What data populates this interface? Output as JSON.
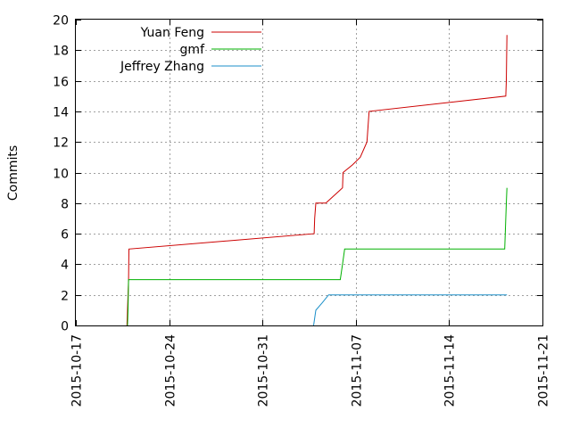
{
  "chart_data": {
    "type": "line",
    "title": "",
    "xlabel": "",
    "ylabel": "Commits",
    "x_axis_type": "date",
    "xlim": [
      "2015-10-17",
      "2015-11-21"
    ],
    "ylim": [
      0,
      20
    ],
    "x_ticks": [
      "2015-10-17",
      "2015-10-24",
      "2015-10-31",
      "2015-11-07",
      "2015-11-14",
      "2015-11-21"
    ],
    "y_ticks": [
      "0",
      "2",
      "4",
      "6",
      "8",
      "10",
      "12",
      "14",
      "16",
      "18",
      "20"
    ],
    "grid": true,
    "legend_position": "top-left",
    "series": [
      {
        "name": "Yuan Feng",
        "color": "#cc0000",
        "points": [
          [
            "2015-10-20 20:00",
            0
          ],
          [
            "2015-10-20 21:00",
            1
          ],
          [
            "2015-10-20 22:00",
            2
          ],
          [
            "2015-10-20 23:00",
            3
          ],
          [
            "2015-10-20 23:30",
            5
          ],
          [
            "2015-11-03 21:00",
            6
          ],
          [
            "2015-11-03 22:00",
            7
          ],
          [
            "2015-11-04 00:00",
            8
          ],
          [
            "2015-11-04 18:00",
            8
          ],
          [
            "2015-11-06 00:00",
            9
          ],
          [
            "2015-11-06 01:00",
            10
          ],
          [
            "2015-11-06 18:00",
            10.5
          ],
          [
            "2015-11-07 08:00",
            11
          ],
          [
            "2015-11-07 20:00",
            12
          ],
          [
            "2015-11-08 00:00",
            14
          ],
          [
            "2015-11-18 06:00",
            15
          ],
          [
            "2015-11-18 07:00",
            16
          ],
          [
            "2015-11-18 08:00",
            19
          ]
        ]
      },
      {
        "name": "gmf",
        "color": "#00b000",
        "points": [
          [
            "2015-10-20 21:00",
            0
          ],
          [
            "2015-10-20 22:00",
            1
          ],
          [
            "2015-10-20 23:00",
            3
          ],
          [
            "2015-11-05 20:00",
            3
          ],
          [
            "2015-11-06 00:00",
            4
          ],
          [
            "2015-11-06 04:00",
            5
          ],
          [
            "2015-11-18 04:00",
            5
          ],
          [
            "2015-11-18 06:00",
            7
          ],
          [
            "2015-11-18 07:00",
            8
          ],
          [
            "2015-11-18 08:00",
            9
          ]
        ]
      },
      {
        "name": "Jeffrey Zhang",
        "color": "#1b8fc9",
        "points": [
          [
            "2015-11-03 20:00",
            0
          ],
          [
            "2015-11-04 00:00",
            1
          ],
          [
            "2015-11-04 12:00",
            1.5
          ],
          [
            "2015-11-04 23:00",
            2
          ],
          [
            "2015-11-18 08:00",
            2
          ]
        ]
      }
    ]
  }
}
